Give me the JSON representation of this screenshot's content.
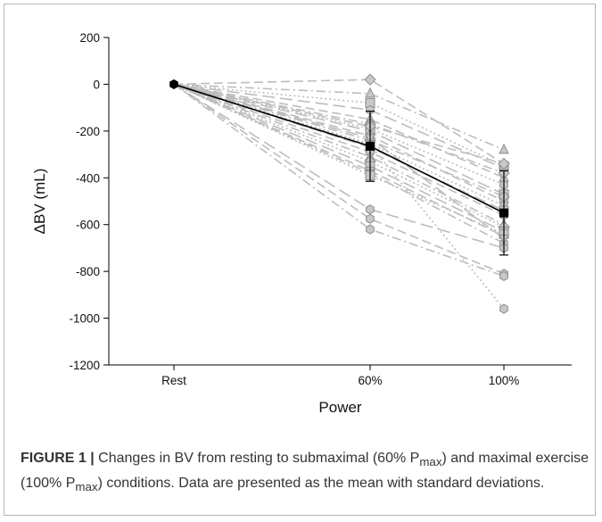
{
  "chart_data": {
    "type": "line",
    "xlabel": "Power",
    "ylabel": "ΔBV (mL)",
    "categories": [
      "Rest",
      "60%",
      "100%"
    ],
    "ylim": [
      -1200,
      200
    ],
    "yticks": [
      200,
      0,
      -200,
      -400,
      -600,
      -800,
      -1000,
      -1200
    ],
    "grid": false,
    "legend": "none",
    "colors": {
      "individual": "#bdbdbd",
      "mean": "#000000"
    },
    "mean_series": {
      "values": [
        0,
        -265,
        -550
      ],
      "sd": [
        0,
        150,
        180
      ]
    },
    "individual_series": [
      {
        "values": [
          0,
          20,
          -340
        ],
        "marker": "diamond"
      },
      {
        "values": [
          0,
          -40,
          -280
        ],
        "marker": "triangle-up"
      },
      {
        "values": [
          0,
          -80,
          -350
        ],
        "marker": "square"
      },
      {
        "values": [
          0,
          -110,
          -360
        ],
        "marker": "hexagon"
      },
      {
        "values": [
          0,
          -150,
          -400
        ],
        "marker": "triangle-up"
      },
      {
        "values": [
          0,
          -170,
          -380
        ],
        "marker": "diamond"
      },
      {
        "values": [
          0,
          -190,
          -430
        ],
        "marker": "hexagon"
      },
      {
        "values": [
          0,
          -200,
          -470
        ],
        "marker": "square"
      },
      {
        "values": [
          0,
          -220,
          -500
        ],
        "marker": "hexagon"
      },
      {
        "values": [
          0,
          -240,
          -480
        ],
        "marker": "diamond"
      },
      {
        "values": [
          0,
          -255,
          -520
        ],
        "marker": "triangle-down"
      },
      {
        "values": [
          0,
          -270,
          -540
        ],
        "marker": "square"
      },
      {
        "values": [
          0,
          -290,
          -560
        ],
        "marker": "hexagon"
      },
      {
        "values": [
          0,
          -310,
          -600
        ],
        "marker": "triangle-up"
      },
      {
        "values": [
          0,
          -330,
          -610
        ],
        "marker": "diamond"
      },
      {
        "values": [
          0,
          -350,
          -630
        ],
        "marker": "square"
      },
      {
        "values": [
          0,
          -370,
          -650
        ],
        "marker": "triangle-down"
      },
      {
        "values": [
          0,
          -380,
          -680
        ],
        "marker": "hexagon"
      },
      {
        "values": [
          0,
          -390,
          -640
        ],
        "marker": "square"
      },
      {
        "values": [
          0,
          -535,
          -700
        ],
        "marker": "hexagon"
      },
      {
        "values": [
          0,
          -575,
          -810
        ],
        "marker": "hexagon"
      },
      {
        "values": [
          0,
          -620,
          -820
        ],
        "marker": "hexagon"
      },
      {
        "values": [
          0,
          -260,
          -960
        ],
        "marker": "hexagon"
      },
      {
        "values": [
          0,
          -230,
          -660
        ],
        "marker": "triangle-down"
      },
      {
        "values": [
          0,
          -180,
          -340
        ],
        "marker": "diamond"
      }
    ]
  },
  "caption": {
    "label": "FIGURE 1 |",
    "text_before_sub1": " Changes in BV from resting to submaximal (60% P",
    "sub1": "max",
    "text_between": ") and maximal exercise (100% P",
    "sub2": "max",
    "text_after": ") conditions. Data are presented as the mean with standard deviations."
  }
}
